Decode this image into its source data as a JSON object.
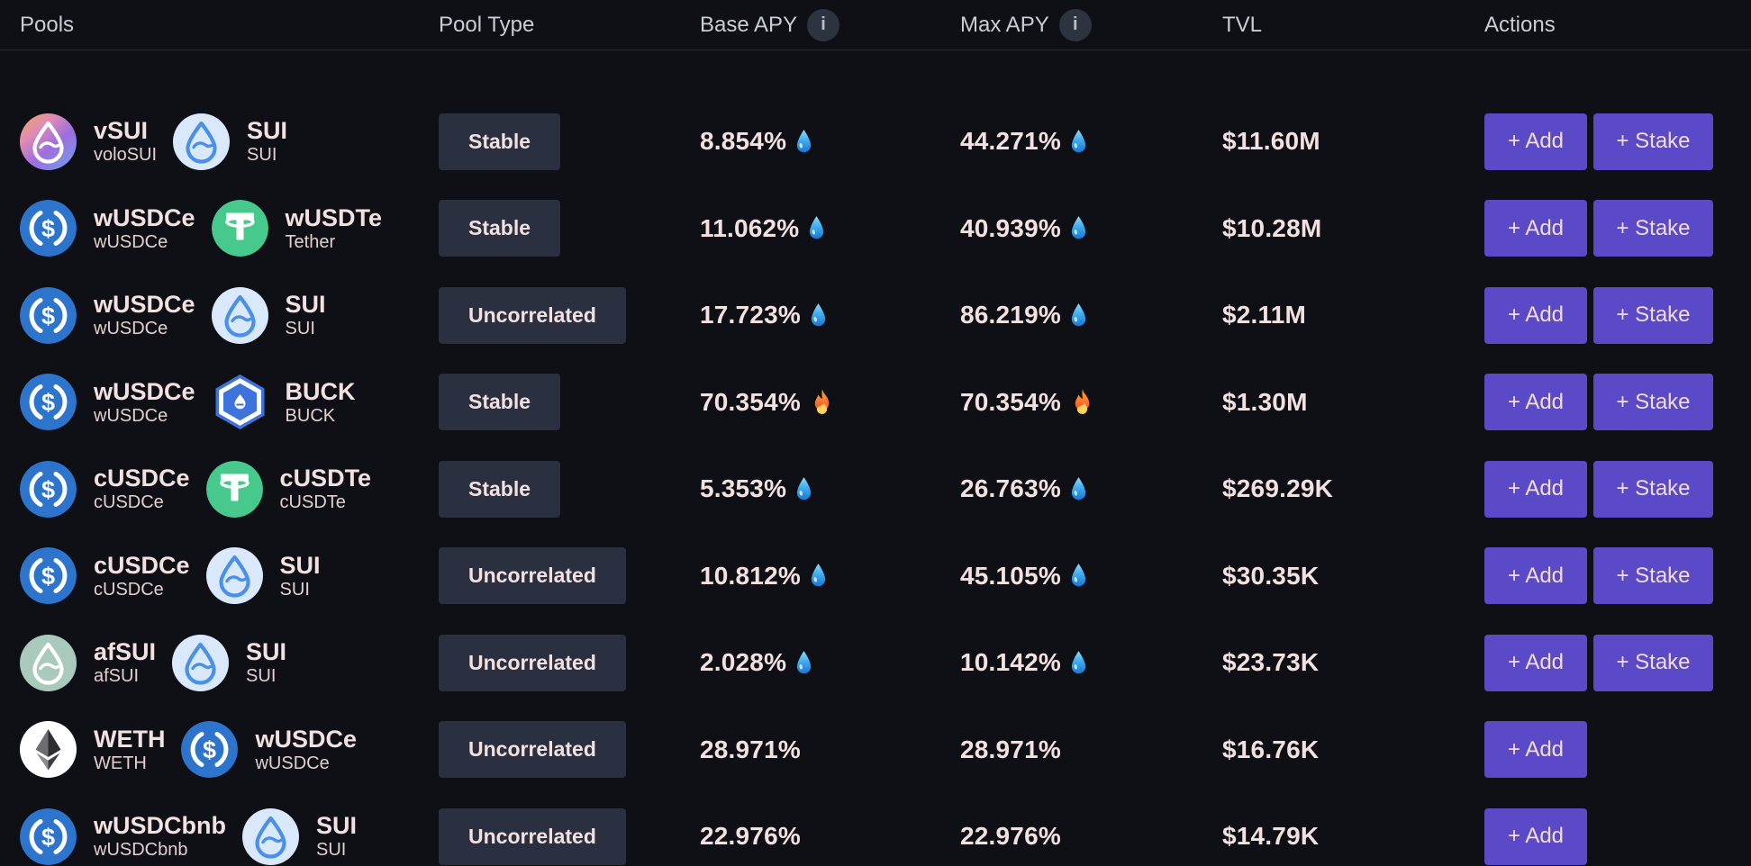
{
  "header": {
    "pools_label": "Pools",
    "pool_type_label": "Pool Type",
    "base_apy_label": "Base APY",
    "max_apy_label": "Max APY",
    "tvl_label": "TVL",
    "actions_label": "Actions",
    "info_icon_glyph": "i"
  },
  "actions_labels": {
    "add": "+ Add",
    "stake": "+ Stake"
  },
  "colors": {
    "bg": "#0e1016",
    "accent": "#5b4ac8",
    "badge-bg": "#2a3040",
    "text-main": "#f3e1e1",
    "header-text": "#c9cdd4",
    "usdc": "#2d74cc",
    "usdt": "#47c98e",
    "sui-drop": "#4a90e8"
  },
  "rows": [
    {
      "token1": {
        "symbol": "vSUI",
        "name": "voloSUI",
        "icon": "vsui"
      },
      "token2": {
        "symbol": "SUI",
        "name": "SUI",
        "icon": "sui"
      },
      "pool_type": "Stable",
      "base_apy": "8.854%",
      "base_apy_flag": "droplet",
      "max_apy": "44.271%",
      "max_apy_flag": "droplet",
      "tvl": "$11.60M",
      "actions": [
        "add",
        "stake"
      ]
    },
    {
      "token1": {
        "symbol": "wUSDCe",
        "name": "wUSDCe",
        "icon": "usdc"
      },
      "token2": {
        "symbol": "wUSDTe",
        "name": "Tether",
        "icon": "usdt"
      },
      "pool_type": "Stable",
      "base_apy": "11.062%",
      "base_apy_flag": "droplet",
      "max_apy": "40.939%",
      "max_apy_flag": "droplet",
      "tvl": "$10.28M",
      "actions": [
        "add",
        "stake"
      ]
    },
    {
      "token1": {
        "symbol": "wUSDCe",
        "name": "wUSDCe",
        "icon": "usdc"
      },
      "token2": {
        "symbol": "SUI",
        "name": "SUI",
        "icon": "sui"
      },
      "pool_type": "Uncorrelated",
      "base_apy": "17.723%",
      "base_apy_flag": "droplet",
      "max_apy": "86.219%",
      "max_apy_flag": "droplet",
      "tvl": "$2.11M",
      "actions": [
        "add",
        "stake"
      ]
    },
    {
      "token1": {
        "symbol": "wUSDCe",
        "name": "wUSDCe",
        "icon": "usdc"
      },
      "token2": {
        "symbol": "BUCK",
        "name": "BUCK",
        "icon": "buck"
      },
      "pool_type": "Stable",
      "base_apy": "70.354%",
      "base_apy_flag": "fire",
      "max_apy": "70.354%",
      "max_apy_flag": "fire",
      "tvl": "$1.30M",
      "actions": [
        "add",
        "stake"
      ]
    },
    {
      "token1": {
        "symbol": "cUSDCe",
        "name": "cUSDCe",
        "icon": "usdc"
      },
      "token2": {
        "symbol": "cUSDTe",
        "name": "cUSDTe",
        "icon": "usdt"
      },
      "pool_type": "Stable",
      "base_apy": "5.353%",
      "base_apy_flag": "droplet",
      "max_apy": "26.763%",
      "max_apy_flag": "droplet",
      "tvl": "$269.29K",
      "actions": [
        "add",
        "stake"
      ]
    },
    {
      "token1": {
        "symbol": "cUSDCe",
        "name": "cUSDCe",
        "icon": "usdc"
      },
      "token2": {
        "symbol": "SUI",
        "name": "SUI",
        "icon": "sui"
      },
      "pool_type": "Uncorrelated",
      "base_apy": "10.812%",
      "base_apy_flag": "droplet",
      "max_apy": "45.105%",
      "max_apy_flag": "droplet",
      "tvl": "$30.35K",
      "actions": [
        "add",
        "stake"
      ]
    },
    {
      "token1": {
        "symbol": "afSUI",
        "name": "afSUI",
        "icon": "afsui"
      },
      "token2": {
        "symbol": "SUI",
        "name": "SUI",
        "icon": "sui"
      },
      "pool_type": "Uncorrelated",
      "base_apy": "2.028%",
      "base_apy_flag": "droplet",
      "max_apy": "10.142%",
      "max_apy_flag": "droplet",
      "tvl": "$23.73K",
      "actions": [
        "add",
        "stake"
      ]
    },
    {
      "token1": {
        "symbol": "WETH",
        "name": "WETH",
        "icon": "weth"
      },
      "token2": {
        "symbol": "wUSDCe",
        "name": "wUSDCe",
        "icon": "usdc"
      },
      "pool_type": "Uncorrelated",
      "base_apy": "28.971%",
      "base_apy_flag": null,
      "max_apy": "28.971%",
      "max_apy_flag": null,
      "tvl": "$16.76K",
      "actions": [
        "add"
      ]
    },
    {
      "token1": {
        "symbol": "wUSDCbnb",
        "name": "wUSDCbnb",
        "icon": "usdc"
      },
      "token2": {
        "symbol": "SUI",
        "name": "SUI",
        "icon": "sui"
      },
      "pool_type": "Uncorrelated",
      "base_apy": "22.976%",
      "base_apy_flag": null,
      "max_apy": "22.976%",
      "max_apy_flag": null,
      "tvl": "$14.79K",
      "actions": [
        "add"
      ]
    }
  ]
}
